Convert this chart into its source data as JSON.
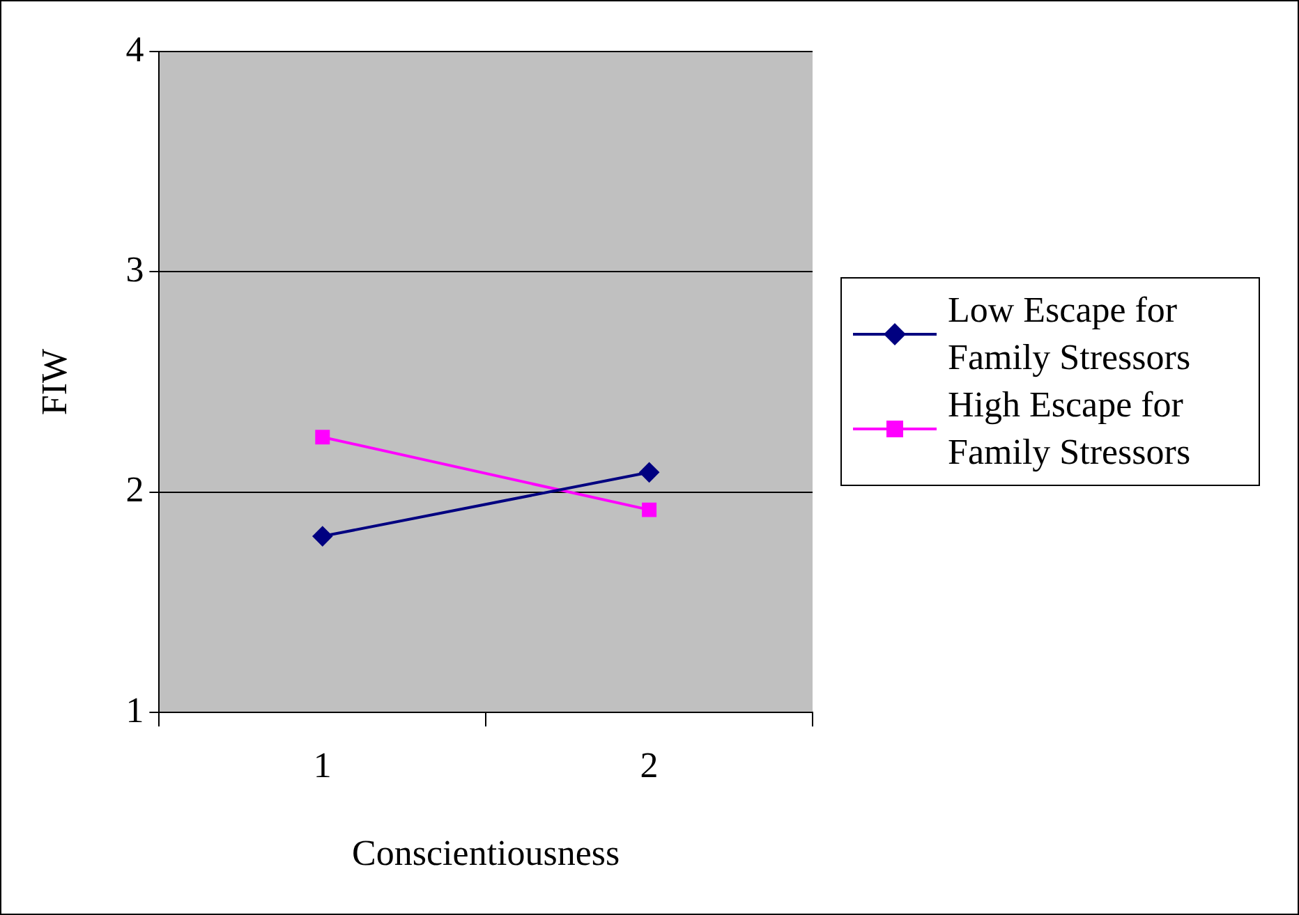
{
  "chart_data": {
    "type": "line",
    "xlabel": "Conscientiousness",
    "ylabel": "FIW",
    "categories": [
      "1",
      "2"
    ],
    "series": [
      {
        "name": "Low Escape for Family Stressors",
        "color": "#000080",
        "values": [
          1.8,
          2.09
        ],
        "marker": "diamond"
      },
      {
        "name": "High Escape for Family Stressors",
        "color": "#ff00ff",
        "values": [
          2.25,
          1.92
        ],
        "marker": "square"
      }
    ],
    "ylim": [
      1,
      4
    ],
    "yticks": [
      1,
      2,
      3,
      4
    ],
    "grid": "y",
    "legend": "right",
    "line_style": "solid"
  }
}
